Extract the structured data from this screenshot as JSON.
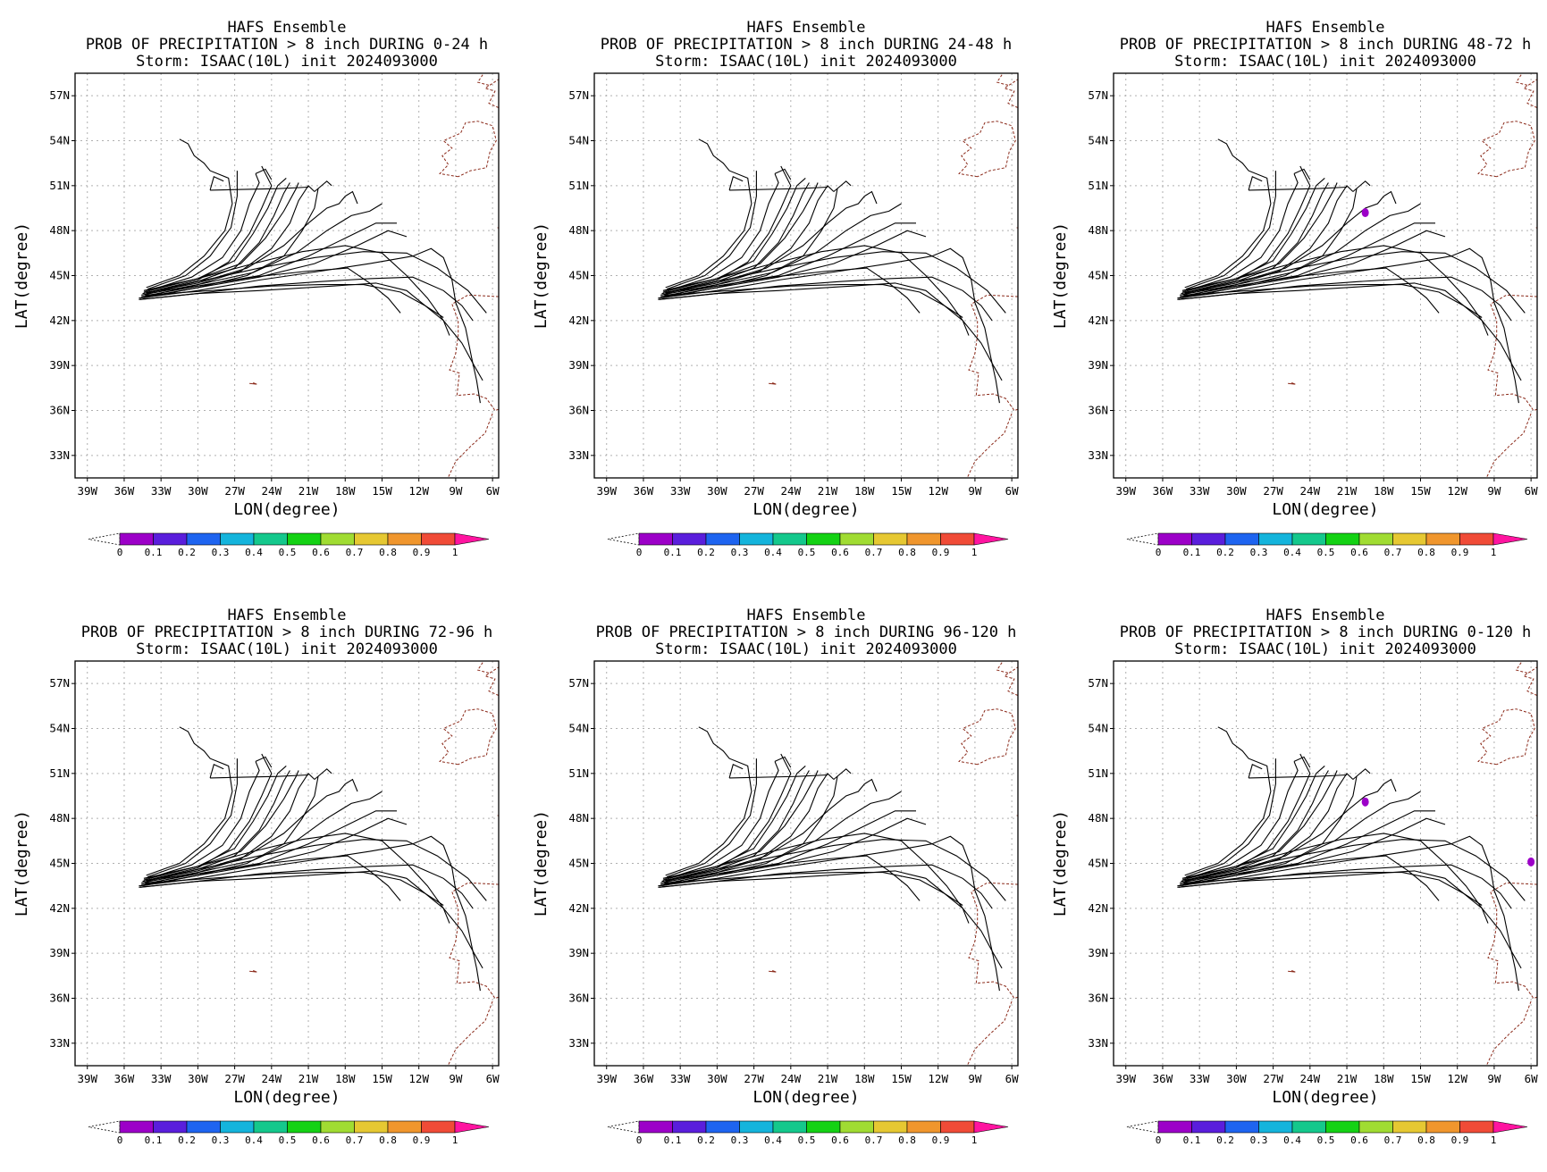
{
  "title_line1": "HAFS Ensemble",
  "title_line3": "Storm: ISAAC(10L) init 2024093000",
  "xlabel": "LON(degree)",
  "ylabel": "LAT(degree)",
  "lat_ticks": [
    "57N",
    "54N",
    "51N",
    "48N",
    "45N",
    "42N",
    "39N",
    "36N",
    "33N"
  ],
  "lon_ticks": [
    "39W",
    "36W",
    "33W",
    "30W",
    "27W",
    "24W",
    "21W",
    "18W",
    "15W",
    "12W",
    "9W",
    "6W"
  ],
  "colorbar": {
    "labels": [
      "0",
      "0.1",
      "0.2",
      "0.3",
      "0.4",
      "0.5",
      "0.6",
      "0.7",
      "0.8",
      "0.9",
      "1"
    ],
    "colors": [
      "#9c00c8",
      "#5a1edc",
      "#1e64f0",
      "#14b4dc",
      "#14c88c",
      "#14d214",
      "#a0dc32",
      "#e6c832",
      "#f0962d",
      "#f04b37",
      "#ff14a0"
    ]
  },
  "colors": {
    "track": "#000000",
    "coast": "#8b2a1a",
    "grid": "#b0b0b0",
    "prob": "#9c00c8"
  },
  "chart_data": [
    {
      "type": "heatmap",
      "title": "HAFS Ensemble",
      "subtitle": "PROB OF PRECIPITATION > 8 inch DURING  0-24 h",
      "storm": "Storm: ISAAC(10L) init 2024093000",
      "xlabel": "LON(degree)",
      "ylabel": "LAT(degree)",
      "xlim": [
        -40,
        -5.5
      ],
      "ylim": [
        31.5,
        58.5
      ],
      "grid": true,
      "probability_cells": []
    },
    {
      "type": "heatmap",
      "title": "HAFS Ensemble",
      "subtitle": "PROB OF PRECIPITATION > 8 inch DURING 24-48 h",
      "storm": "Storm: ISAAC(10L) init 2024093000",
      "xlabel": "LON(degree)",
      "ylabel": "LAT(degree)",
      "xlim": [
        -40,
        -5.5
      ],
      "ylim": [
        31.5,
        58.5
      ],
      "grid": true,
      "probability_cells": []
    },
    {
      "type": "heatmap",
      "title": "HAFS Ensemble",
      "subtitle": "PROB OF PRECIPITATION > 8 inch DURING 48-72 h",
      "storm": "Storm: ISAAC(10L) init 2024093000",
      "xlabel": "LON(degree)",
      "ylabel": "LAT(degree)",
      "xlim": [
        -40,
        -5.5
      ],
      "ylim": [
        31.5,
        58.5
      ],
      "grid": true,
      "probability_cells": [
        {
          "lon": -19.5,
          "lat": 49.2,
          "prob": 0.05
        }
      ]
    },
    {
      "type": "heatmap",
      "title": "HAFS Ensemble",
      "subtitle": "PROB OF PRECIPITATION > 8 inch DURING 72-96 h",
      "storm": "Storm: ISAAC(10L) init 2024093000",
      "xlabel": "LON(degree)",
      "ylabel": "LAT(degree)",
      "xlim": [
        -40,
        -5.5
      ],
      "ylim": [
        31.5,
        58.5
      ],
      "grid": true,
      "probability_cells": []
    },
    {
      "type": "heatmap",
      "title": "HAFS Ensemble",
      "subtitle": "PROB OF PRECIPITATION > 8 inch DURING 96-120 h",
      "storm": "Storm: ISAAC(10L) init 2024093000",
      "xlabel": "LON(degree)",
      "ylabel": "LAT(degree)",
      "xlim": [
        -40,
        -5.5
      ],
      "ylim": [
        31.5,
        58.5
      ],
      "grid": true,
      "probability_cells": []
    },
    {
      "type": "heatmap",
      "title": "HAFS Ensemble",
      "subtitle": "PROB OF PRECIPITATION > 8 inch DURING 0-120 h",
      "storm": "Storm: ISAAC(10L) init 2024093000",
      "xlabel": "LON(degree)",
      "ylabel": "LAT(degree)",
      "xlim": [
        -40,
        -5.5
      ],
      "ylim": [
        31.5,
        58.5
      ],
      "grid": true,
      "probability_cells": [
        {
          "lon": -19.5,
          "lat": 49.1,
          "prob": 0.08
        },
        {
          "lon": -6.0,
          "lat": 45.1,
          "prob": 0.05
        }
      ]
    }
  ],
  "tracks": [
    [
      [
        -34.5,
        43.5
      ],
      [
        -30,
        44.2
      ],
      [
        -26,
        45.0
      ],
      [
        -23,
        46.3
      ],
      [
        -21.5,
        48.0
      ],
      [
        -20.5,
        49.5
      ],
      [
        -20.2,
        50.8
      ]
    ],
    [
      [
        -34.3,
        43.6
      ],
      [
        -30,
        44.4
      ],
      [
        -26.5,
        45.3
      ],
      [
        -24,
        46.8
      ],
      [
        -22.5,
        48.5
      ],
      [
        -21.8,
        50.0
      ],
      [
        -21.0,
        51.0
      ],
      [
        -20.5,
        50.6
      ]
    ],
    [
      [
        -34.2,
        43.8
      ],
      [
        -30,
        44.6
      ],
      [
        -27,
        45.5
      ],
      [
        -25,
        47.2
      ],
      [
        -23.8,
        49.0
      ],
      [
        -23.0,
        50.5
      ],
      [
        -22.5,
        51.2
      ]
    ],
    [
      [
        -34.0,
        43.9
      ],
      [
        -30,
        44.7
      ],
      [
        -27.5,
        45.9
      ],
      [
        -25.8,
        47.8
      ],
      [
        -24.8,
        49.5
      ],
      [
        -24.0,
        51.0
      ],
      [
        -24.8,
        52.3
      ]
    ],
    [
      [
        -34.0,
        44.0
      ],
      [
        -30.5,
        44.9
      ],
      [
        -28,
        46.2
      ],
      [
        -26.5,
        48.0
      ],
      [
        -25.8,
        49.8
      ],
      [
        -25.0,
        51.2
      ],
      [
        -25.3,
        51.8
      ]
    ],
    [
      [
        -34.1,
        44.1
      ],
      [
        -31,
        45.0
      ],
      [
        -29,
        46.3
      ],
      [
        -27.3,
        48.2
      ],
      [
        -26.8,
        50.3
      ],
      [
        -26.8,
        52.0
      ]
    ],
    [
      [
        -34.2,
        44.2
      ],
      [
        -31.5,
        45.0
      ],
      [
        -29.5,
        46.3
      ],
      [
        -27.8,
        48.0
      ],
      [
        -27.2,
        49.8
      ],
      [
        -27.5,
        51.5
      ],
      [
        -29,
        52.0
      ],
      [
        -29.5,
        52.5
      ],
      [
        -30.3,
        53.0
      ],
      [
        -30.8,
        53.8
      ],
      [
        -31.5,
        54.1
      ]
    ],
    [
      [
        -34.3,
        44.0
      ],
      [
        -30,
        44.8
      ],
      [
        -26.5,
        45.8
      ],
      [
        -24.5,
        47.5
      ],
      [
        -23.0,
        49.3
      ],
      [
        -22.0,
        50.8
      ],
      [
        -21.8,
        51.2
      ]
    ],
    [
      [
        -34.4,
        43.9
      ],
      [
        -30,
        44.8
      ],
      [
        -27,
        46.0
      ],
      [
        -25.5,
        47.8
      ],
      [
        -24.3,
        49.5
      ],
      [
        -23.5,
        51.0
      ],
      [
        -22.8,
        51.5
      ]
    ],
    [
      [
        -34.5,
        43.8
      ],
      [
        -30,
        44.5
      ],
      [
        -26,
        45.5
      ],
      [
        -23,
        47.0
      ],
      [
        -21.0,
        48.5
      ],
      [
        -19.5,
        49.5
      ],
      [
        -18.5,
        49.8
      ],
      [
        -18.0,
        50.3
      ]
    ],
    [
      [
        -34.6,
        43.7
      ],
      [
        -30,
        44.4
      ],
      [
        -25.5,
        45.2
      ],
      [
        -22,
        46.5
      ],
      [
        -19.5,
        48.0
      ],
      [
        -17.5,
        49.0
      ],
      [
        -16.0,
        49.3
      ],
      [
        -15.0,
        49.8
      ]
    ],
    [
      [
        -34.6,
        43.6
      ],
      [
        -30,
        44.3
      ],
      [
        -25,
        45.0
      ],
      [
        -21,
        46.3
      ],
      [
        -18,
        47.5
      ],
      [
        -15.5,
        48.5
      ],
      [
        -13.8,
        48.5
      ]
    ],
    [
      [
        -34.7,
        43.5
      ],
      [
        -30,
        44.2
      ],
      [
        -25,
        44.9
      ],
      [
        -20.5,
        45.8
      ],
      [
        -17,
        47.0
      ],
      [
        -14.5,
        48.0
      ],
      [
        -13.0,
        47.6
      ]
    ],
    [
      [
        -34.8,
        43.5
      ],
      [
        -30,
        44.0
      ],
      [
        -25,
        44.7
      ],
      [
        -20,
        45.3
      ],
      [
        -16,
        45.8
      ],
      [
        -12.5,
        46.3
      ],
      [
        -11.0,
        46.8
      ],
      [
        -10.0,
        46.2
      ],
      [
        -9.3,
        44.7
      ],
      [
        -9.0,
        43.2
      ],
      [
        -8.2,
        41.5
      ],
      [
        -7.7,
        39.5
      ],
      [
        -7.3,
        38.0
      ],
      [
        -7.0,
        36.5
      ]
    ],
    [
      [
        -34.8,
        43.4
      ],
      [
        -30,
        43.8
      ],
      [
        -25,
        44.3
      ],
      [
        -20,
        44.6
      ],
      [
        -16,
        44.8
      ],
      [
        -12.5,
        44.9
      ],
      [
        -10.0,
        44.0
      ],
      [
        -8.5,
        43.0
      ],
      [
        -7.6,
        42.0
      ]
    ],
    [
      [
        -34.7,
        43.4
      ],
      [
        -30,
        43.8
      ],
      [
        -25,
        44.0
      ],
      [
        -19,
        44.3
      ],
      [
        -15.5,
        44.5
      ],
      [
        -13.0,
        44.0
      ],
      [
        -11.5,
        43.0
      ],
      [
        -10.0,
        42.0
      ],
      [
        -9.5,
        41.0
      ]
    ],
    [
      [
        -34.5,
        43.8
      ],
      [
        -30,
        44.6
      ],
      [
        -25,
        45.5
      ],
      [
        -20.5,
        46.2
      ],
      [
        -16.5,
        46.6
      ],
      [
        -13.0,
        46.5
      ],
      [
        -10.5,
        45.5
      ],
      [
        -8.0,
        44.0
      ],
      [
        -6.5,
        42.5
      ]
    ],
    [
      [
        -34.4,
        44.0
      ],
      [
        -30,
        44.8
      ],
      [
        -25.5,
        45.8
      ],
      [
        -21.5,
        46.6
      ],
      [
        -18,
        47.0
      ],
      [
        -15,
        46.5
      ],
      [
        -13.0,
        45.0
      ],
      [
        -11.3,
        43.5
      ],
      [
        -10.0,
        42.0
      ],
      [
        -8.5,
        40.5
      ],
      [
        -7.5,
        39.0
      ],
      [
        -6.8,
        38.0
      ]
    ],
    [
      [
        -34.2,
        43.9
      ],
      [
        -30,
        44.3
      ],
      [
        -25.5,
        44.9
      ],
      [
        -21,
        45.3
      ],
      [
        -17.8,
        45.5
      ],
      [
        -16.0,
        44.5
      ],
      [
        -14.5,
        43.5
      ],
      [
        -13.5,
        42.5
      ]
    ],
    [
      [
        -34.3,
        43.7
      ],
      [
        -29,
        44.0
      ],
      [
        -24,
        44.3
      ],
      [
        -20,
        44.4
      ],
      [
        -16.5,
        44.4
      ],
      [
        -13.5,
        43.9
      ],
      [
        -11.5,
        43.0
      ],
      [
        -10.0,
        42.2
      ]
    ]
  ],
  "top_loops": [
    [
      [
        -29.0,
        50.7
      ],
      [
        -23.5,
        50.8
      ],
      [
        -21.0,
        50.9
      ]
    ],
    [
      [
        -25.3,
        51.8
      ],
      [
        -24.5,
        52.1
      ],
      [
        -24.0,
        51.4
      ]
    ],
    [
      [
        -20.5,
        50.6
      ],
      [
        -19.5,
        51.3
      ],
      [
        -19.1,
        51.0
      ]
    ],
    [
      [
        -18.0,
        50.3
      ],
      [
        -17.4,
        50.6
      ],
      [
        -17.0,
        49.8
      ]
    ],
    [
      [
        -29.0,
        50.7
      ],
      [
        -28.7,
        51.6
      ],
      [
        -27.9,
        51.3
      ]
    ]
  ],
  "coastlines": [
    [
      [
        -8.8,
        51.6
      ],
      [
        -10.3,
        51.8
      ],
      [
        -9.6,
        52.4
      ],
      [
        -10.1,
        53.0
      ],
      [
        -9.3,
        53.5
      ],
      [
        -10.0,
        54.0
      ],
      [
        -8.6,
        54.5
      ],
      [
        -8.2,
        55.2
      ],
      [
        -7.2,
        55.3
      ],
      [
        -6.0,
        55.0
      ],
      [
        -5.7,
        54.0
      ],
      [
        -6.2,
        53.3
      ],
      [
        -6.5,
        52.2
      ],
      [
        -7.8,
        52.0
      ],
      [
        -8.8,
        51.6
      ]
    ],
    [
      [
        -5.5,
        56.2
      ],
      [
        -6.3,
        56.5
      ],
      [
        -5.8,
        57.3
      ],
      [
        -6.6,
        57.5
      ],
      [
        -5.3,
        58.2
      ]
    ],
    [
      [
        -5.5,
        50.1
      ],
      [
        -5.0,
        50.5
      ],
      [
        -4.5,
        51.0
      ],
      [
        -4.0,
        51.3
      ]
    ],
    [
      [
        -5.6,
        48.2
      ],
      [
        -4.8,
        48.0
      ],
      [
        -4.2,
        47.8
      ]
    ],
    [
      [
        -1.5,
        43.5
      ],
      [
        -5.6,
        43.6
      ],
      [
        -8.0,
        43.7
      ],
      [
        -9.3,
        43.1
      ],
      [
        -8.8,
        42.0
      ],
      [
        -8.8,
        41.0
      ],
      [
        -9.0,
        39.8
      ],
      [
        -9.5,
        38.7
      ],
      [
        -8.7,
        38.5
      ],
      [
        -8.9,
        37.0
      ],
      [
        -7.5,
        37.1
      ],
      [
        -6.5,
        36.8
      ],
      [
        -5.8,
        36.0
      ],
      [
        -5.0,
        36.2
      ]
    ],
    [
      [
        -6.0,
        35.8
      ],
      [
        -6.6,
        34.5
      ],
      [
        -7.8,
        33.6
      ],
      [
        -9.0,
        32.6
      ],
      [
        -9.8,
        31.2
      ]
    ],
    [
      [
        -6.3,
        57.7
      ],
      [
        -7.2,
        57.9
      ],
      [
        -6.8,
        58.4
      ]
    ]
  ],
  "islands": [
    [
      [
        -25.8,
        37.8
      ],
      [
        -25.2,
        37.75
      ],
      [
        -25.5,
        37.85
      ]
    ]
  ]
}
